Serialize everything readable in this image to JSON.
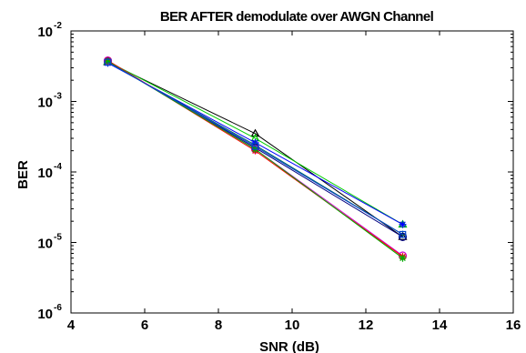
{
  "chart_data": {
    "type": "line",
    "title": "BER AFTER demodulate over  AWGN Channel",
    "xlabel": "SNR (dB)",
    "ylabel": "BER",
    "xlim": [
      4,
      16
    ],
    "ylim": [
      1e-06,
      0.01
    ],
    "yscale": "log",
    "grid": false,
    "x_ticks": [
      "4",
      "6",
      "8",
      "10",
      "12",
      "14",
      "16"
    ],
    "y_ticks": [
      {
        "base": "10",
        "exp": "-6"
      },
      {
        "base": "10",
        "exp": "-5"
      },
      {
        "base": "10",
        "exp": "-4"
      },
      {
        "base": "10",
        "exp": "-3"
      },
      {
        "base": "10",
        "exp": "-2"
      }
    ],
    "x": [
      5,
      9,
      13
    ],
    "series": [
      {
        "color": "#000000",
        "marker": "triangle",
        "values": [
          0.0036,
          0.00035,
          1.2e-05
        ]
      },
      {
        "color": "#00cc00",
        "marker": "triangle",
        "values": [
          0.0037,
          0.0003,
          1.8e-05
        ]
      },
      {
        "color": "#0000ff",
        "marker": "star",
        "values": [
          0.0035,
          0.00026,
          1.8e-05
        ]
      },
      {
        "color": "#006666",
        "marker": "plus",
        "values": [
          0.0036,
          0.00024,
          1.3e-05
        ]
      },
      {
        "color": "#000080",
        "marker": "circle",
        "values": [
          0.0037,
          0.00022,
          1.2e-05
        ]
      },
      {
        "color": "#cc00cc",
        "marker": "circle",
        "values": [
          0.0038,
          0.00021,
          6.5e-06
        ]
      },
      {
        "color": "#ff0000",
        "marker": "star",
        "values": [
          0.0038,
          0.0002,
          6.3e-06
        ]
      },
      {
        "color": "#00aa00",
        "marker": "star",
        "values": [
          0.0037,
          0.00021,
          6e-06
        ]
      },
      {
        "color": "#0044cc",
        "marker": "square",
        "values": [
          0.0036,
          0.00023,
          1.3e-05
        ]
      }
    ]
  }
}
